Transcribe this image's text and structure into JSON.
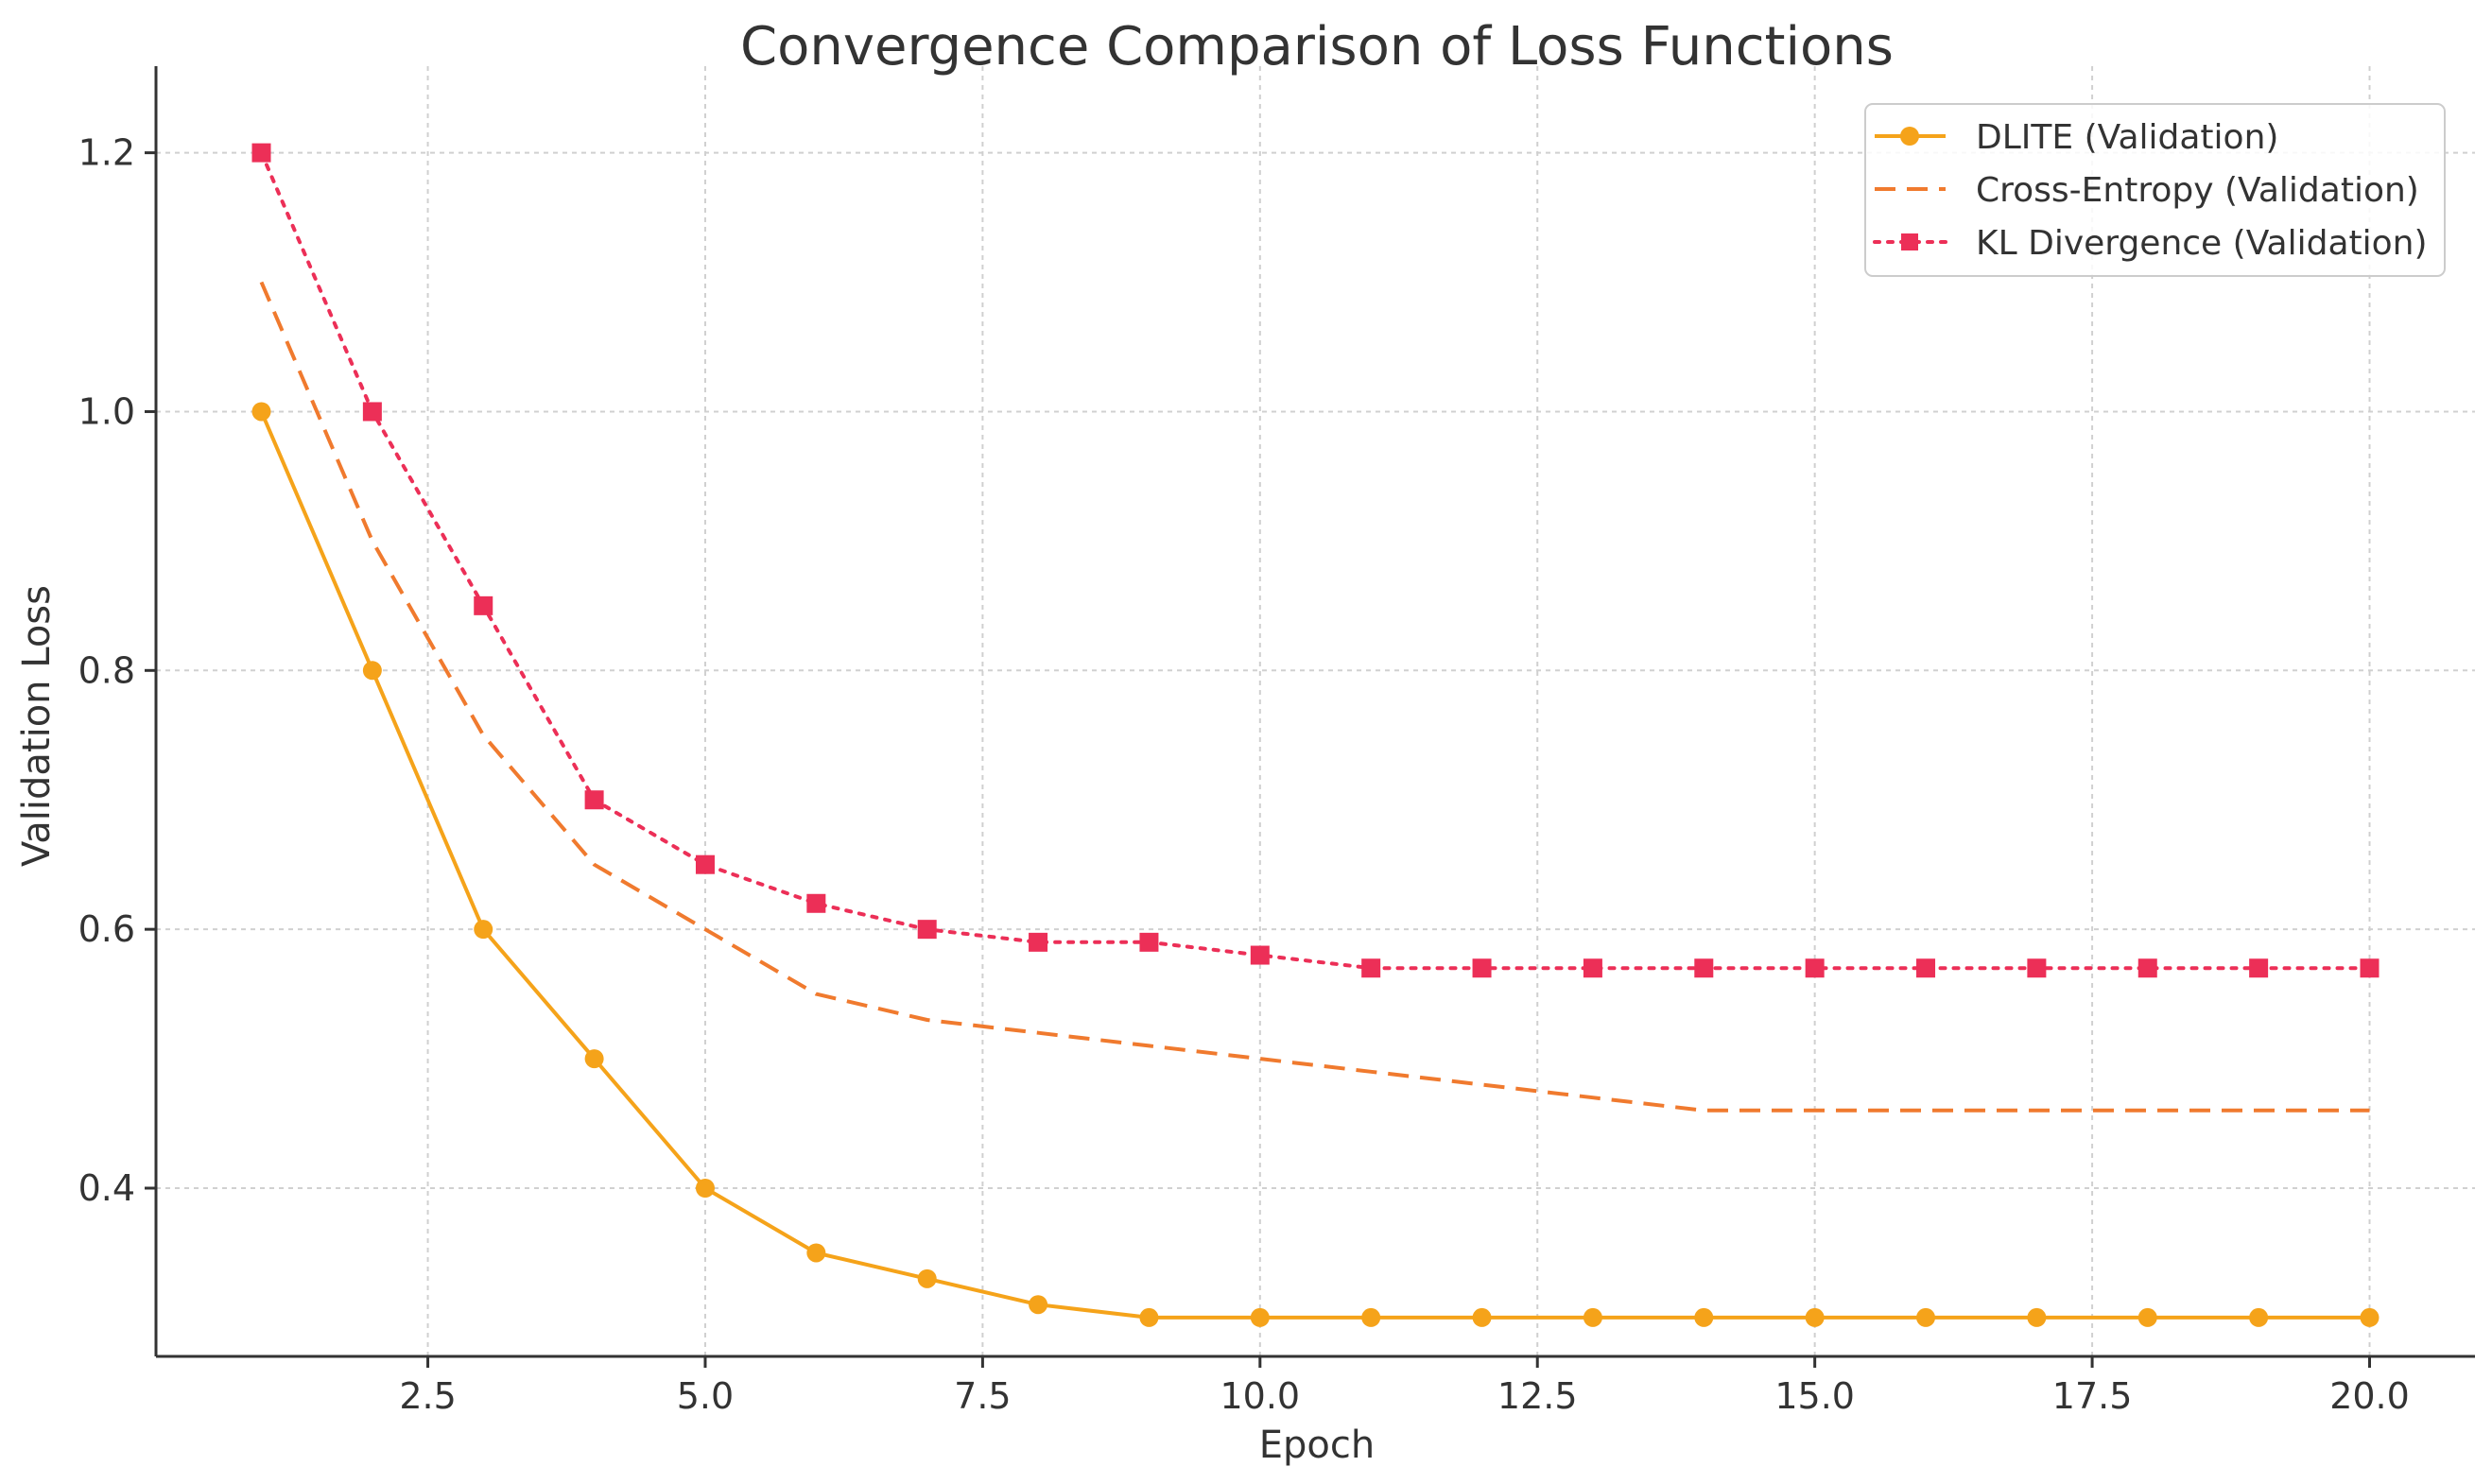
{
  "chart_data": {
    "type": "line",
    "title": "Convergence Comparison of Loss Functions",
    "xlabel": "Epoch",
    "ylabel": "Validation Loss",
    "xlim": [
      0.05,
      20.95
    ],
    "ylim": [
      0.27,
      1.245
    ],
    "x_ticks": [
      2.5,
      5.0,
      7.5,
      10.0,
      12.5,
      15.0,
      17.5,
      20.0
    ],
    "x_tick_labels": [
      "2.5",
      "5.0",
      "7.5",
      "10.0",
      "12.5",
      "15.0",
      "17.5",
      "20.0"
    ],
    "y_ticks": [
      0.4,
      0.6,
      0.8,
      1.0,
      1.2
    ],
    "y_tick_labels": [
      "0.4",
      "0.6",
      "0.8",
      "1.0",
      "1.2"
    ],
    "grid": true,
    "legend_position": "top-right",
    "x": [
      1,
      2,
      3,
      4,
      5,
      6,
      7,
      8,
      9,
      10,
      11,
      12,
      13,
      14,
      15,
      16,
      17,
      18,
      19,
      20
    ],
    "series": [
      {
        "name": "DLITE (Validation)",
        "color": "#F5A31A",
        "line_style": "solid",
        "marker": "circle",
        "values": [
          1.0,
          0.8,
          0.6,
          0.5,
          0.4,
          0.35,
          0.33,
          0.31,
          0.3,
          0.3,
          0.3,
          0.3,
          0.3,
          0.3,
          0.3,
          0.3,
          0.3,
          0.3,
          0.3,
          0.3
        ]
      },
      {
        "name": "Cross-Entropy (Validation)",
        "color": "#F07A2E",
        "line_style": "dashed",
        "marker": "none",
        "values": [
          1.1,
          0.9,
          0.75,
          0.65,
          0.6,
          0.55,
          0.53,
          0.52,
          0.51,
          0.5,
          0.49,
          0.48,
          0.47,
          0.46,
          0.46,
          0.46,
          0.46,
          0.46,
          0.46,
          0.46
        ]
      },
      {
        "name": "KL Divergence (Validation)",
        "color": "#EC2F57",
        "line_style": "dotted",
        "marker": "square",
        "values": [
          1.2,
          1.0,
          0.85,
          0.7,
          0.65,
          0.62,
          0.6,
          0.59,
          0.59,
          0.58,
          0.57,
          0.57,
          0.57,
          0.57,
          0.57,
          0.57,
          0.57,
          0.57,
          0.57,
          0.57
        ]
      }
    ]
  }
}
